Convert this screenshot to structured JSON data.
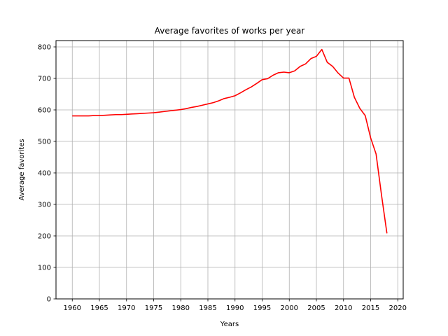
{
  "chart_data": {
    "type": "line",
    "title": "Average favorites of works per year",
    "xlabel": "Years",
    "ylabel": "Average favorites",
    "xlim": [
      1957,
      2021
    ],
    "ylim": [
      0,
      820
    ],
    "xticks": [
      1960,
      1965,
      1970,
      1975,
      1980,
      1985,
      1990,
      1995,
      2000,
      2005,
      2010,
      2015,
      2020
    ],
    "yticks": [
      0,
      100,
      200,
      300,
      400,
      500,
      600,
      700,
      800
    ],
    "grid": true,
    "series": [
      {
        "color": "#ff0000",
        "x": [
          1960,
          1961,
          1962,
          1963,
          1964,
          1965,
          1966,
          1967,
          1968,
          1969,
          1970,
          1971,
          1972,
          1973,
          1974,
          1975,
          1976,
          1977,
          1978,
          1979,
          1980,
          1981,
          1982,
          1983,
          1984,
          1985,
          1986,
          1987,
          1988,
          1989,
          1990,
          1991,
          1992,
          1993,
          1994,
          1995,
          1996,
          1997,
          1998,
          1999,
          2000,
          2001,
          2002,
          2003,
          2004,
          2005,
          2006,
          2007,
          2008,
          2009,
          2010,
          2011,
          2012,
          2013,
          2014,
          2015,
          2016,
          2017,
          2018
        ],
        "y": [
          581,
          581,
          581,
          581,
          582,
          582,
          583,
          584,
          585,
          585,
          586,
          587,
          588,
          589,
          590,
          591,
          593,
          595,
          597,
          599,
          601,
          604,
          608,
          611,
          615,
          619,
          623,
          629,
          636,
          640,
          645,
          654,
          664,
          673,
          684,
          696,
          699,
          710,
          718,
          720,
          718,
          724,
          738,
          746,
          763,
          770,
          792,
          751,
          738,
          717,
          701,
          701,
          640,
          605,
          582,
          511,
          460,
          330,
          208
        ]
      }
    ]
  }
}
